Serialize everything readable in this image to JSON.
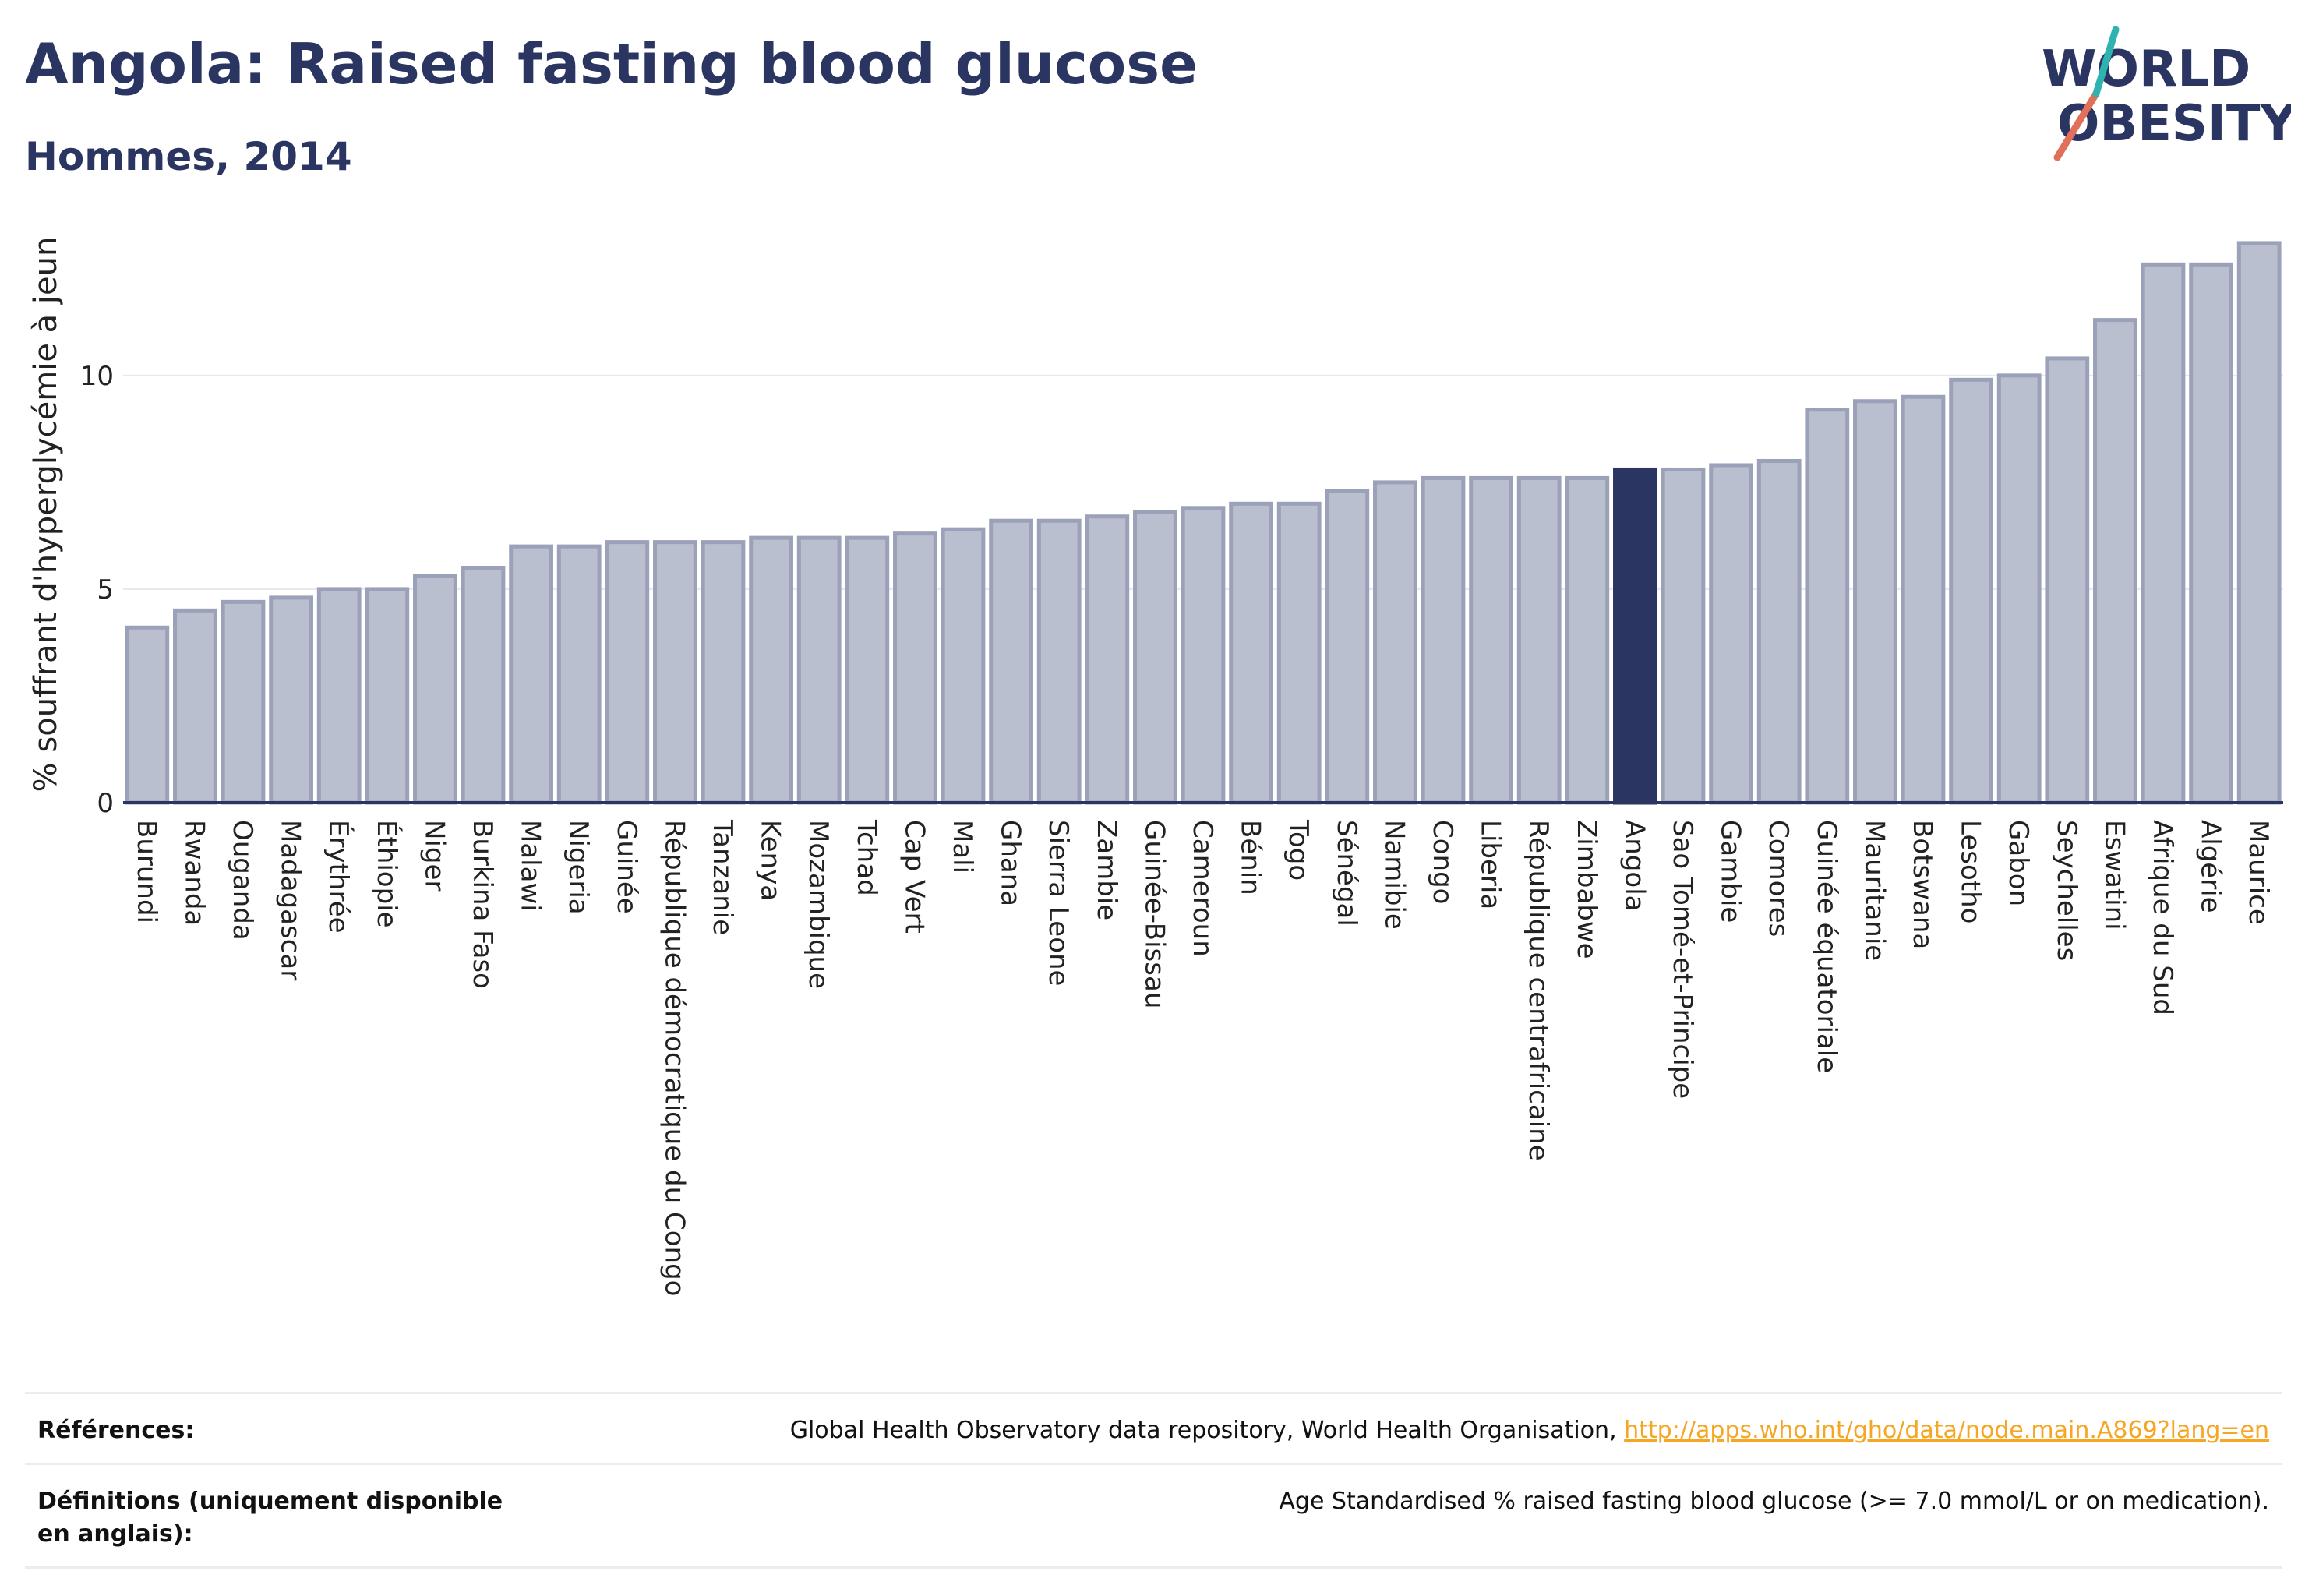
{
  "header": {
    "title": "Angola: Raised fasting blood glucose",
    "subtitle": "Hommes, 2014"
  },
  "logo": {
    "line1": "WORLD",
    "line2": "OBESITY",
    "accent_color": "#e0705a",
    "accent_color2": "#2fb3b0"
  },
  "footer": {
    "references_label": "Références:",
    "references_text": "Global Health Observatory data repository, World Health Organisation, ",
    "references_link": "http://apps.who.int/gho/data/node.main.A869?lang=en",
    "definitions_label": "Définitions (uniquement disponible en anglais):",
    "definitions_text": "Age Standardised % raised fasting blood glucose (>= 7.0 mmol/L or on medication)."
  },
  "colors": {
    "bar": "#b9bfce",
    "bar_stroke": "#9aa1b8",
    "highlight": "#2b3561",
    "grid": "#e6e8ee",
    "axis": "#2b3561"
  },
  "chart_data": {
    "type": "bar",
    "title": "Angola: Raised fasting blood glucose",
    "subtitle": "Hommes, 2014",
    "xlabel": "",
    "ylabel": "% souffrant d'hyperglycémie à jeun",
    "ylim": [
      0,
      13.5
    ],
    "yticks": [
      0,
      5,
      10
    ],
    "grid": true,
    "highlight": "Angola",
    "categories": [
      "Burundi",
      "Rwanda",
      "Ouganda",
      "Madagascar",
      "Érythrée",
      "Éthiopie",
      "Niger",
      "Burkina Faso",
      "Malawi",
      "Nigeria",
      "Guinée",
      "République démocratique du Congo",
      "Tanzanie",
      "Kenya",
      "Mozambique",
      "Tchad",
      "Cap Vert",
      "Mali",
      "Ghana",
      "Sierra Leone",
      "Zambie",
      "Guinée-Bissau",
      "Cameroun",
      "Bénin",
      "Togo",
      "Sénégal",
      "Namibie",
      "Congo",
      "Liberia",
      "République centrafricaine",
      "Zimbabwe",
      "Angola",
      "Sao Tomé-et-Principe",
      "Gambie",
      "Comores",
      "Guinée équatoriale",
      "Mauritanie",
      "Botswana",
      "Lesotho",
      "Gabon",
      "Seychelles",
      "Eswatini",
      "Afrique du Sud",
      "Algérie",
      "Maurice"
    ],
    "values": [
      4.1,
      4.5,
      4.7,
      4.8,
      5.0,
      5.0,
      5.3,
      5.5,
      6.0,
      6.0,
      6.1,
      6.1,
      6.1,
      6.2,
      6.2,
      6.2,
      6.3,
      6.4,
      6.6,
      6.6,
      6.7,
      6.8,
      6.9,
      7.0,
      7.0,
      7.3,
      7.5,
      7.6,
      7.6,
      7.6,
      7.6,
      7.8,
      7.8,
      7.9,
      8.0,
      9.2,
      9.4,
      9.5,
      9.9,
      10.0,
      10.4,
      11.3,
      12.6,
      12.6,
      13.1
    ]
  }
}
